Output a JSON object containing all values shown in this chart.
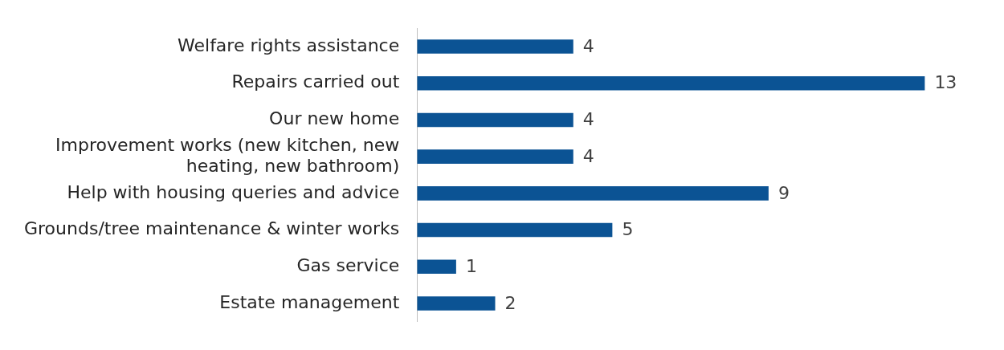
{
  "chart_data": {
    "type": "bar",
    "orientation": "horizontal",
    "categories": [
      "Welfare rights assistance",
      "Repairs carried out",
      "Our new home",
      "Improvement works (new kitchen, new heating, new bathroom)",
      "Help with housing queries and advice",
      "Grounds/tree maintenance & winter works",
      "Gas service",
      "Estate management"
    ],
    "values": [
      4,
      13,
      4,
      4,
      9,
      5,
      1,
      2
    ],
    "color": "#0b5394",
    "data_labels": true
  }
}
